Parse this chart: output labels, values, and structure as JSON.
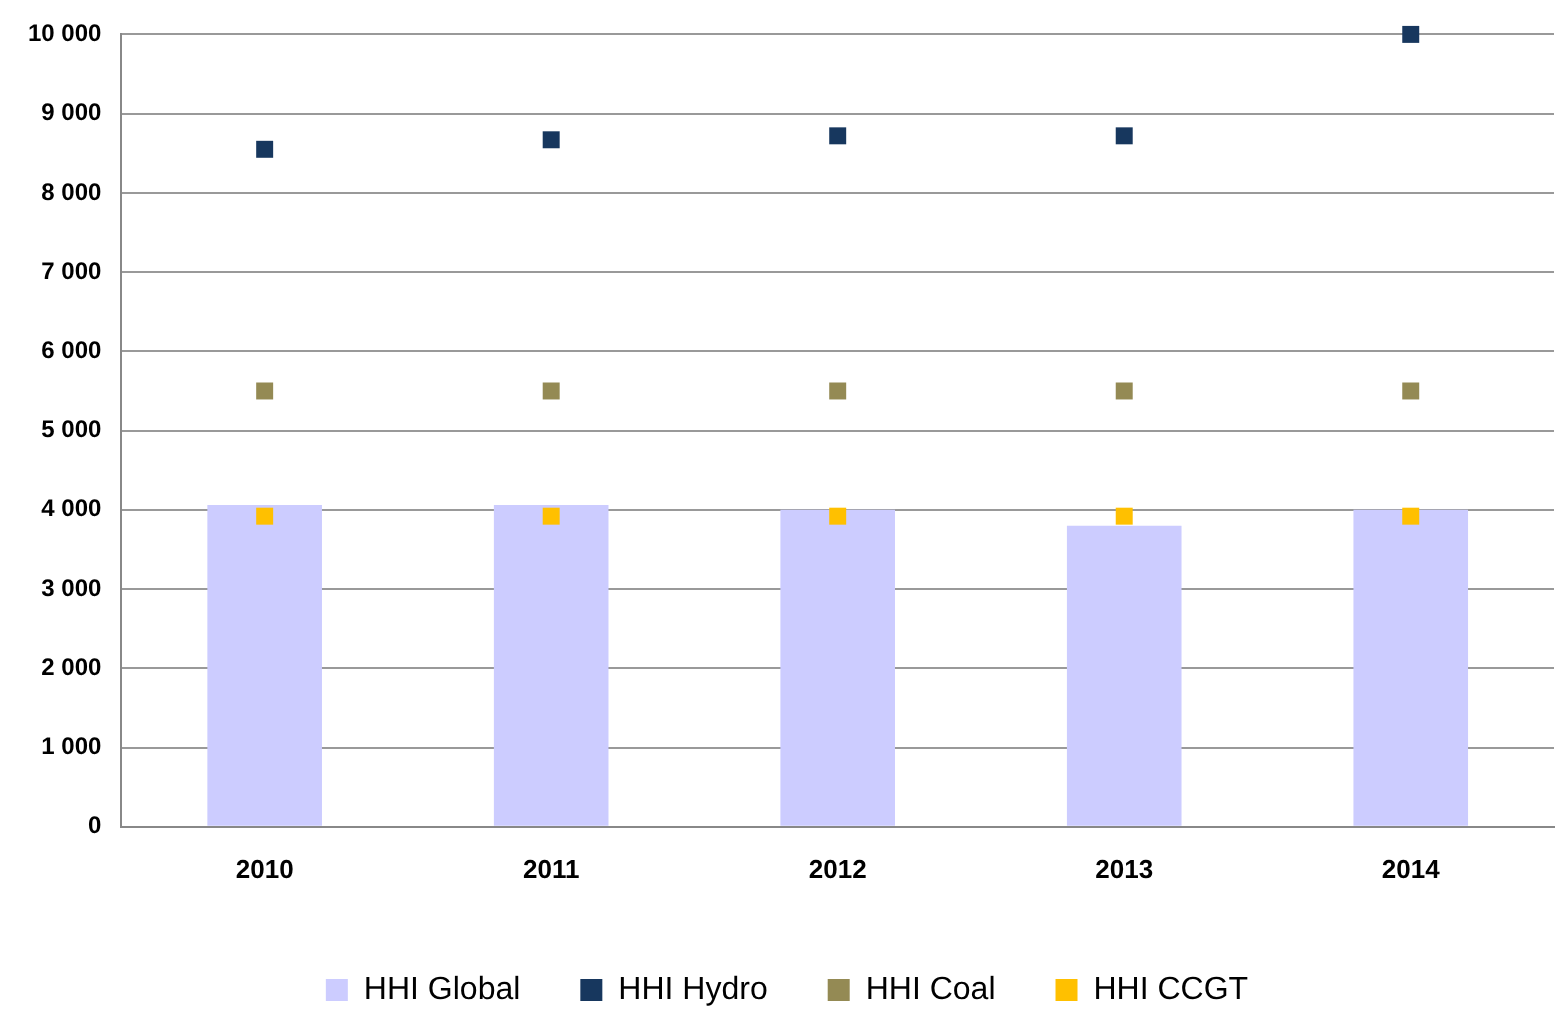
{
  "chart_data": {
    "type": "bar",
    "categories": [
      "2010",
      "2011",
      "2012",
      "2013",
      "2014"
    ],
    "series": [
      {
        "name": "HHI Global",
        "color": "#ccccff",
        "values": [
          4060,
          4060,
          4000,
          3800,
          4000
        ]
      },
      {
        "name": "HHI Hydro",
        "type": "scatter",
        "color": "#17375e",
        "values": [
          8550,
          8670,
          8720,
          8720,
          10000
        ]
      },
      {
        "name": "HHI Coal",
        "type": "scatter",
        "color": "#948a54",
        "values": [
          5500,
          5500,
          5500,
          5500,
          5500
        ]
      },
      {
        "name": "HHI CCGT",
        "type": "scatter",
        "color": "#ffc000",
        "values": [
          3920,
          3920,
          3920,
          3920,
          3920
        ]
      }
    ],
    "ylim": [
      0,
      10000
    ],
    "yticks": [
      {
        "value": 0,
        "label": "0"
      },
      {
        "value": 1000,
        "label": "1 000"
      },
      {
        "value": 2000,
        "label": "2 000"
      },
      {
        "value": 3000,
        "label": "3 000"
      },
      {
        "value": 4000,
        "label": "4 000"
      },
      {
        "value": 5000,
        "label": "5 000"
      },
      {
        "value": 6000,
        "label": "6 000"
      },
      {
        "value": 7000,
        "label": "7 000"
      },
      {
        "value": 8000,
        "label": "8 000"
      },
      {
        "value": 9000,
        "label": "9 000"
      },
      {
        "value": 10000,
        "label": "10 000"
      }
    ],
    "grid": "y",
    "legend": "bottom",
    "marker": "square"
  }
}
